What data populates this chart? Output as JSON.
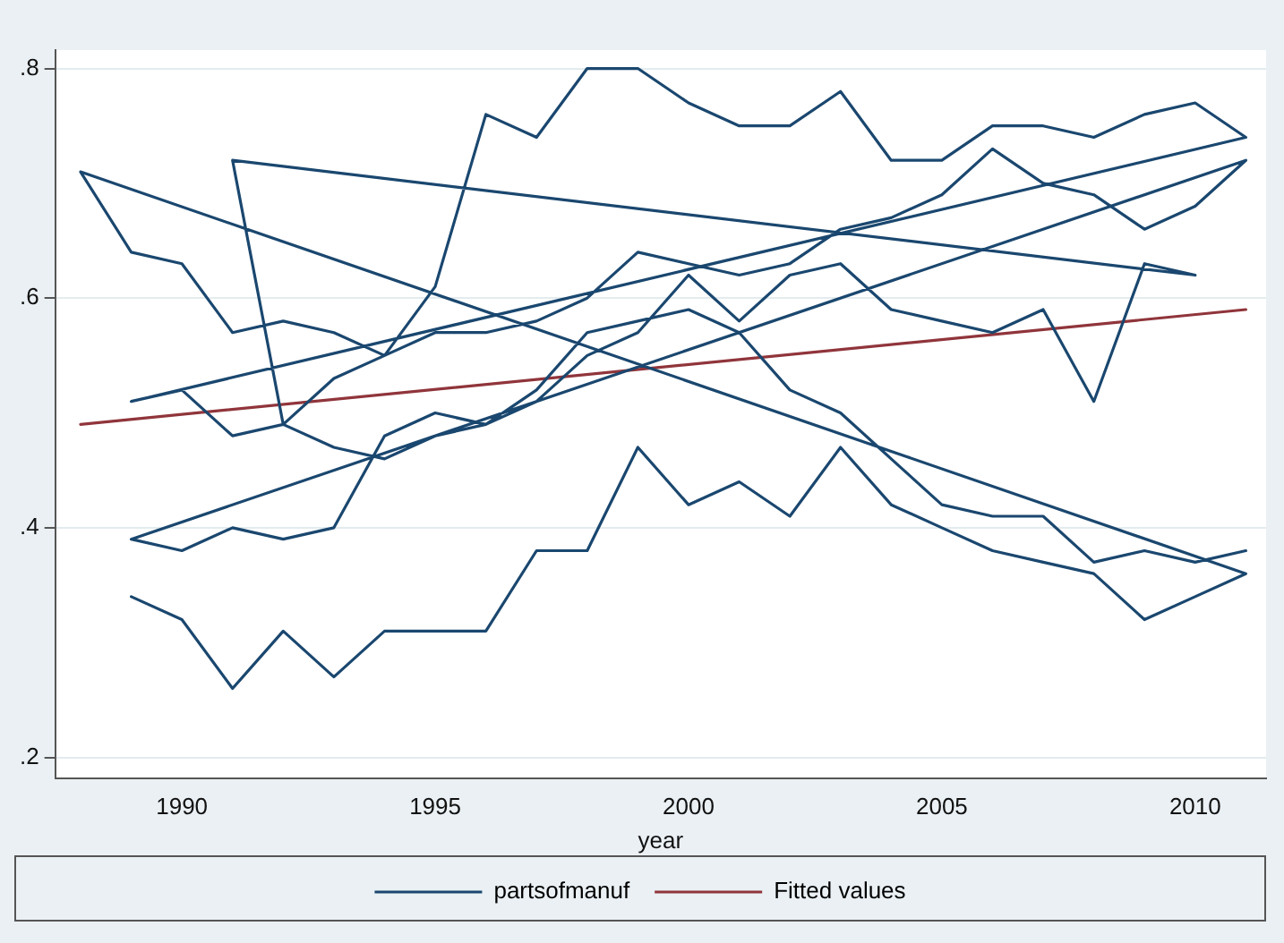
{
  "chart_data": {
    "type": "line",
    "xlabel": "year",
    "xlim": [
      1987.5,
      2011.4
    ],
    "xticks": [
      1990,
      1995,
      2000,
      2005,
      2010
    ],
    "ylim": [
      0.182,
      0.816
    ],
    "yticks": [
      {
        "value": 0.2,
        "label": ".2"
      },
      {
        "value": 0.4,
        "label": ".4"
      },
      {
        "value": 0.6,
        "label": ".6"
      },
      {
        "value": 0.8,
        "label": ".8"
      }
    ],
    "grid": "y",
    "legend": "bottom",
    "marker": "none",
    "line_style": "solid",
    "series": [
      {
        "name": "partsofmanuf",
        "color": "#1a476f",
        "x": [
          1989,
          1990,
          1991,
          1992,
          1993,
          1994,
          1995,
          1996,
          1997,
          1998,
          1999,
          2000,
          2001,
          2002,
          2003,
          2004,
          2005,
          2006,
          2007,
          2008,
          2009,
          2010,
          2011,
          1988,
          1989,
          1990,
          1991,
          1992,
          1993,
          1994,
          1995,
          1996,
          1997,
          1998,
          1999,
          2000,
          2001,
          2002,
          2003,
          2004,
          2005,
          2006,
          2007,
          2008,
          2009,
          2010,
          2011,
          1989,
          1990,
          1991,
          1992,
          1993,
          1994,
          1995,
          1996,
          1997,
          1998,
          1999,
          2000,
          2001,
          2002,
          2003,
          2004,
          2005,
          2006,
          2007,
          2008,
          2009,
          2010,
          2011,
          1989,
          1990,
          1991,
          1992,
          1993,
          1994,
          1995,
          1996,
          1997,
          1998,
          1999,
          2000,
          2001,
          2002,
          2003,
          2004,
          2005,
          2006,
          2007,
          2008,
          2009,
          2010,
          1991,
          1992,
          1993,
          1994,
          1995,
          1996,
          1997,
          1998,
          1999,
          2000,
          2001,
          2002,
          2003,
          2004,
          2005,
          2006,
          2007,
          2008,
          2009,
          2010,
          2011
        ],
        "values": [
          0.34,
          0.32,
          0.26,
          0.31,
          0.27,
          0.31,
          0.31,
          0.31,
          0.38,
          0.38,
          0.47,
          0.42,
          0.44,
          0.41,
          0.47,
          0.42,
          0.4,
          0.38,
          0.37,
          0.36,
          0.32,
          0.34,
          0.36,
          0.71,
          0.64,
          0.63,
          0.57,
          0.58,
          0.57,
          0.55,
          0.61,
          0.76,
          0.74,
          0.8,
          0.8,
          0.77,
          0.75,
          0.75,
          0.78,
          0.72,
          0.72,
          0.75,
          0.75,
          0.74,
          0.76,
          0.77,
          0.74,
          0.51,
          0.52,
          0.48,
          0.49,
          0.53,
          0.55,
          0.57,
          0.57,
          0.58,
          0.6,
          0.64,
          0.63,
          0.62,
          0.63,
          0.66,
          0.67,
          0.69,
          0.73,
          0.7,
          0.69,
          0.66,
          0.68,
          0.72,
          0.39,
          0.38,
          0.4,
          0.39,
          0.4,
          0.48,
          0.5,
          0.49,
          0.51,
          0.55,
          0.57,
          0.62,
          0.58,
          0.62,
          0.63,
          0.59,
          0.58,
          0.57,
          0.59,
          0.51,
          0.63,
          0.62,
          0.72,
          0.49,
          0.47,
          0.46,
          0.48,
          0.49,
          0.52,
          0.57,
          0.58,
          0.59,
          0.57,
          0.52,
          0.5,
          0.46,
          0.42,
          0.41,
          0.41,
          0.37,
          0.38,
          0.37,
          0.38
        ]
      },
      {
        "name": "Fitted values",
        "color": "#90353b",
        "x": [
          1988,
          2011
        ],
        "values": [
          0.49,
          0.59
        ]
      }
    ]
  }
}
